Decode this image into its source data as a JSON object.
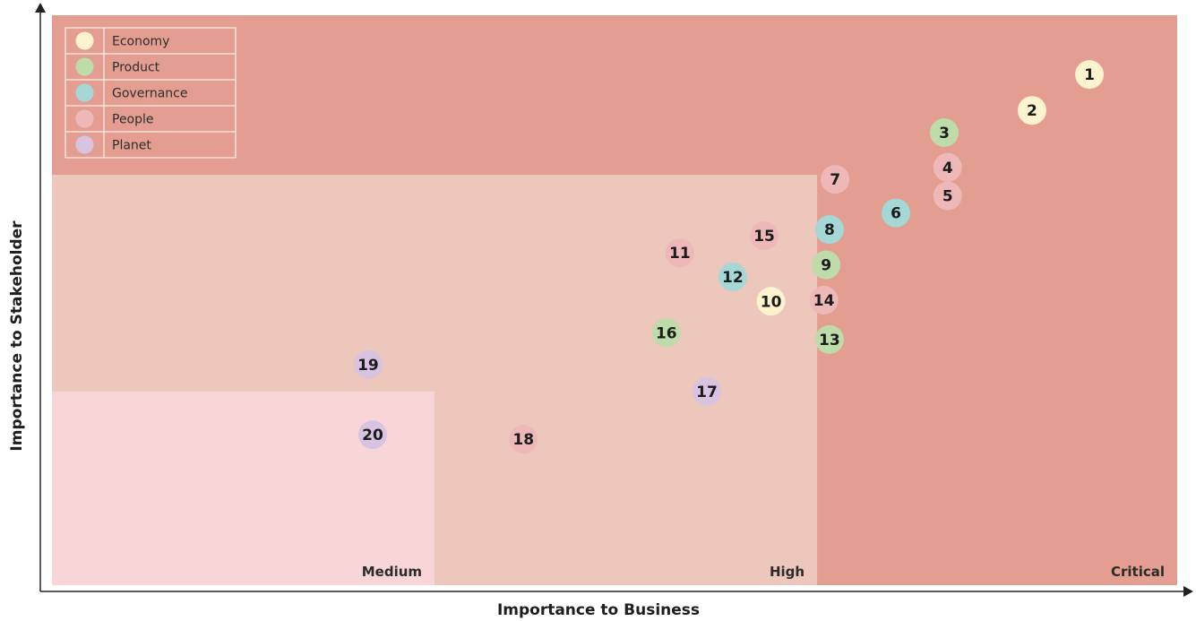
{
  "chart_data": {
    "type": "scatter",
    "xlabel": "Importance to Business",
    "ylabel": "Importance to Stakeholder",
    "xlim": [
      0,
      100
    ],
    "ylim": [
      0,
      100
    ],
    "zones": [
      {
        "label": "Critical",
        "x": [
          0,
          100
        ],
        "y": [
          0,
          100
        ],
        "color": "#e39e91"
      },
      {
        "label": "High",
        "x": [
          0,
          68
        ],
        "y": [
          0,
          72
        ],
        "color": "#edc6bc"
      },
      {
        "label": "Medium",
        "x": [
          0,
          34
        ],
        "y": [
          0,
          34
        ],
        "color": "#f8d6d8"
      }
    ],
    "legend": {
      "position": "top-left",
      "items": [
        {
          "name": "Economy",
          "color": "#fdf4cf"
        },
        {
          "name": "Product",
          "color": "#bedbaa"
        },
        {
          "name": "Governance",
          "color": "#a6d7d7"
        },
        {
          "name": "People",
          "color": "#eeb7b8"
        },
        {
          "name": "Planet",
          "color": "#d8c3e0"
        }
      ]
    },
    "points": [
      {
        "label": "1",
        "category": "Economy",
        "x": 92.2,
        "y": 89.6
      },
      {
        "label": "2",
        "category": "Economy",
        "x": 87.1,
        "y": 83.3
      },
      {
        "label": "3",
        "category": "Product",
        "x": 79.3,
        "y": 79.4
      },
      {
        "label": "4",
        "category": "People",
        "x": 79.6,
        "y": 73.3
      },
      {
        "label": "5",
        "category": "People",
        "x": 79.6,
        "y": 68.3
      },
      {
        "label": "6",
        "category": "Governance",
        "x": 75.0,
        "y": 65.3
      },
      {
        "label": "7",
        "category": "People",
        "x": 69.6,
        "y": 71.2
      },
      {
        "label": "8",
        "category": "Governance",
        "x": 69.1,
        "y": 62.4
      },
      {
        "label": "9",
        "category": "Product",
        "x": 68.8,
        "y": 56.2
      },
      {
        "label": "10",
        "category": "Economy",
        "x": 63.9,
        "y": 49.8
      },
      {
        "label": "11",
        "category": "People",
        "x": 55.8,
        "y": 58.3
      },
      {
        "label": "12",
        "category": "Governance",
        "x": 60.5,
        "y": 54.1
      },
      {
        "label": "13",
        "category": "Product",
        "x": 69.1,
        "y": 43.1
      },
      {
        "label": "14",
        "category": "People",
        "x": 68.6,
        "y": 50.0
      },
      {
        "label": "15",
        "category": "People",
        "x": 63.3,
        "y": 61.3
      },
      {
        "label": "16",
        "category": "Product",
        "x": 54.6,
        "y": 44.3
      },
      {
        "label": "17",
        "category": "Planet",
        "x": 58.2,
        "y": 34.0
      },
      {
        "label": "18",
        "category": "People",
        "x": 41.9,
        "y": 25.6
      },
      {
        "label": "19",
        "category": "Planet",
        "x": 28.1,
        "y": 38.7
      },
      {
        "label": "20",
        "category": "Planet",
        "x": 28.5,
        "y": 26.4
      }
    ]
  }
}
